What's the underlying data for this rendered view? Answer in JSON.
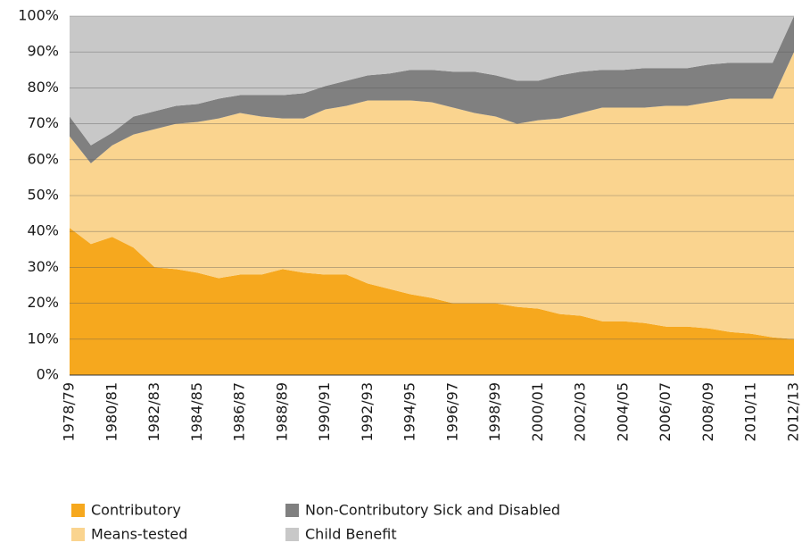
{
  "chart_data": {
    "type": "stacked_area",
    "categories": [
      "1978/79",
      null,
      "1980/81",
      null,
      "1982/83",
      null,
      "1984/85",
      null,
      "1986/87",
      null,
      "1988/89",
      null,
      "1990/91",
      null,
      "1992/93",
      null,
      "1994/95",
      null,
      "1996/97",
      null,
      "1998/99",
      null,
      "2000/01",
      null,
      "2002/03",
      null,
      "2004/05",
      null,
      "2006/07",
      null,
      "2008/09",
      null,
      "2010/11",
      null,
      "2012/13"
    ],
    "series": [
      {
        "name": "Contributory",
        "color": "#f6a81e",
        "values": [
          41,
          36.5,
          38.5,
          35.5,
          30,
          29.5,
          28.5,
          27,
          28,
          28,
          29.5,
          28.5,
          28,
          28,
          25.5,
          24,
          22.5,
          21.5,
          20,
          20,
          20,
          19,
          18.5,
          17,
          16.5,
          15,
          15,
          14.5,
          13.5,
          13.5,
          13,
          12,
          11.5,
          10.5,
          10
        ]
      },
      {
        "name": "Means-tested",
        "color": "#fad48f",
        "values": [
          25.5,
          22.5,
          25.5,
          31.5,
          38.5,
          40.5,
          42,
          44.5,
          45,
          44,
          42,
          43,
          46,
          47,
          51,
          52.5,
          54,
          54.5,
          54.5,
          53,
          52,
          51,
          52.5,
          54.5,
          56.5,
          59.5,
          59.5,
          60,
          61.5,
          61.5,
          63,
          65,
          65.5,
          66.5,
          80
        ]
      },
      {
        "name": "Non-Contributory Sick and Disabled",
        "color": "#808080",
        "values": [
          5.5,
          5,
          3.5,
          5,
          5,
          5,
          5,
          5.5,
          5,
          6,
          6.5,
          7,
          6.5,
          7,
          7,
          7.5,
          8.5,
          9,
          10,
          11.5,
          11.5,
          12,
          11,
          12,
          11.5,
          10.5,
          10.5,
          11,
          10.5,
          10.5,
          10.5,
          10,
          10,
          10,
          10
        ]
      },
      {
        "name": "Child Benefit",
        "color": "#c8c8c8",
        "values": [
          28,
          36,
          32.5,
          28,
          26.5,
          25,
          24.5,
          23,
          22,
          22,
          22,
          21.5,
          19.5,
          18,
          16.5,
          16,
          15,
          15,
          15.5,
          15.5,
          16.5,
          18,
          18,
          16.5,
          15.5,
          15,
          15,
          14.5,
          14.5,
          14.5,
          13.5,
          13,
          13,
          13,
          0
        ]
      }
    ],
    "ylim": [
      0,
      100
    ],
    "yticks": [
      {
        "value": 0,
        "label": "0%"
      },
      {
        "value": 10,
        "label": "10%"
      },
      {
        "value": 20,
        "label": "20%"
      },
      {
        "value": 30,
        "label": "30%"
      },
      {
        "value": 40,
        "label": "40%"
      },
      {
        "value": 50,
        "label": "50%"
      },
      {
        "value": 60,
        "label": "60%"
      },
      {
        "value": 70,
        "label": "70%"
      },
      {
        "value": 80,
        "label": "80%"
      },
      {
        "value": 90,
        "label": "90%"
      },
      {
        "value": 100,
        "label": "100%"
      }
    ],
    "grid": true
  }
}
